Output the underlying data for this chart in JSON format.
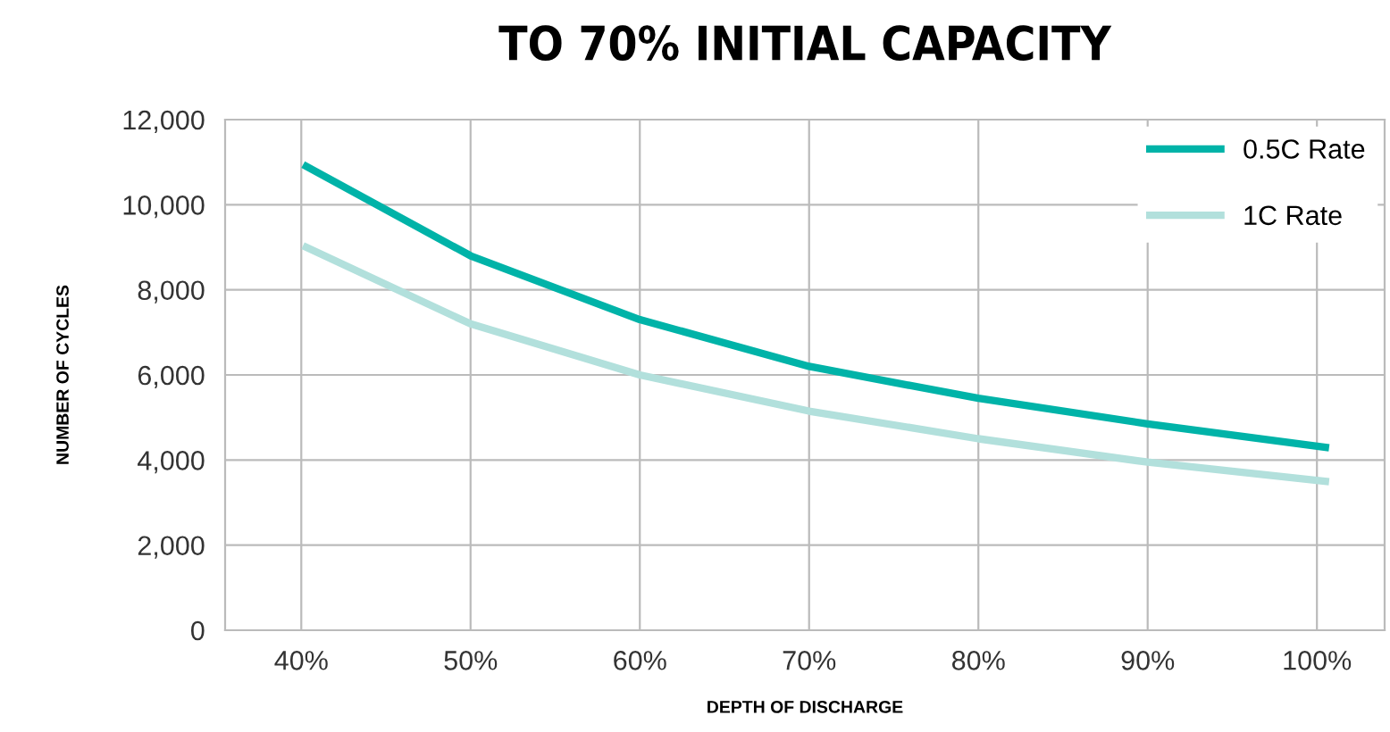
{
  "chart_data": {
    "type": "line",
    "title": "TO 70% INITIAL CAPACITY",
    "xlabel": "DEPTH OF DISCHARGE",
    "ylabel": "NUMBER OF CYCLES",
    "series": [
      {
        "name": "0.5C Rate",
        "color": "#00b3a8",
        "x": [
          40.3,
          50,
          60,
          70,
          80,
          90,
          100.5
        ],
        "values": [
          10900,
          8800,
          7300,
          6200,
          5450,
          4850,
          4300
        ]
      },
      {
        "name": "1C Rate",
        "color": "#b2e0dc",
        "x": [
          40.3,
          50,
          60,
          70,
          80,
          90,
          100.5
        ],
        "values": [
          9000,
          7200,
          6000,
          5150,
          4500,
          3950,
          3500
        ]
      }
    ],
    "xlim": [
      35.5,
      104
    ],
    "xticks": [
      {
        "value": 40,
        "label": "40%"
      },
      {
        "value": 50,
        "label": "50%"
      },
      {
        "value": 60,
        "label": "60%"
      },
      {
        "value": 70,
        "label": "70%"
      },
      {
        "value": 80,
        "label": "80%"
      },
      {
        "value": 90,
        "label": "90%"
      },
      {
        "value": 100,
        "label": "100%"
      }
    ],
    "ylim": [
      0,
      12000
    ],
    "yticks": [
      {
        "value": 0,
        "label": "0"
      },
      {
        "value": 2000,
        "label": "2,000"
      },
      {
        "value": 4000,
        "label": "4,000"
      },
      {
        "value": 6000,
        "label": "6,000"
      },
      {
        "value": 8000,
        "label": "8,000"
      },
      {
        "value": 10000,
        "label": "10,000"
      },
      {
        "value": 12000,
        "label": "12,000"
      }
    ],
    "grid": true,
    "legend": "top right",
    "marker": "none",
    "line_style": "solid"
  }
}
